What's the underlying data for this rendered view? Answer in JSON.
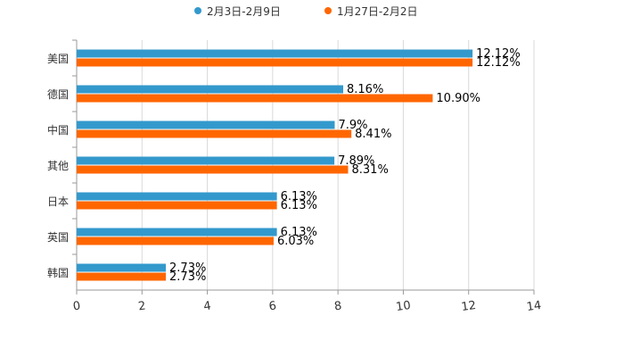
{
  "chart_data": {
    "type": "bar",
    "orientation": "horizontal",
    "title": "",
    "xlabel": "",
    "ylabel": "",
    "categories": [
      "美国",
      "德国",
      "中国",
      "其他",
      "日本",
      "英国",
      "韩国"
    ],
    "series": [
      {
        "name": "2月3日-2月9日",
        "color": "#3399cc",
        "values": [
          12.12,
          8.16,
          7.9,
          7.89,
          6.13,
          6.13,
          2.73
        ],
        "labels": [
          "12.12%",
          "8.16%",
          "7.9%",
          "7.89%",
          "6.13%",
          "6.13%",
          "2.73%"
        ]
      },
      {
        "name": "1月27日-2月2日",
        "color": "#ff6600",
        "values": [
          12.12,
          10.9,
          8.41,
          8.31,
          6.13,
          6.03,
          2.73
        ],
        "labels": [
          "12.12%",
          "10.90%",
          "8.41%",
          "8.31%",
          "6.13%",
          "6.03%",
          "2.73%"
        ]
      }
    ],
    "xlim": [
      0,
      14
    ],
    "xticks": [
      "0",
      "2",
      "4",
      "6",
      "8",
      "10",
      "12",
      "14"
    ],
    "grid": true,
    "legend_position": "top-center"
  }
}
